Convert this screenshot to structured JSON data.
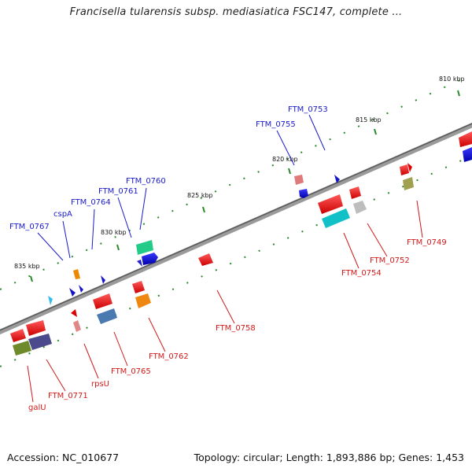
{
  "title": "Francisella tularensis subsp. mediasiatica FSC147, complete ...",
  "footer": {
    "accession": "Accession: NC_010677",
    "topology": "Topology: circular; Length: 1,893,886 bp; Genes: 1,453"
  },
  "scale_labels": [
    "810 kbp",
    "815 kbp",
    "820 kbp",
    "825 kbp",
    "830 kbp",
    "835 kbp"
  ],
  "upper_strand_labels": [
    "FTM_0753",
    "FTM_0755",
    "FTM_0760",
    "FTM_0761",
    "FTM_0764",
    "cspA",
    "FTM_0767"
  ],
  "lower_strand_labels": [
    "FTM_0749",
    "FTM_0752",
    "FTM_0754",
    "FTM_0758",
    "FTM_0762",
    "FTM_0765",
    "rpsU",
    "FTM_0771",
    "galU"
  ],
  "colors": {
    "upper_label": "#1a1acc",
    "lower_label": "#d01a1a",
    "backbone": "#777777",
    "ticks": "#2a8a2a"
  }
}
